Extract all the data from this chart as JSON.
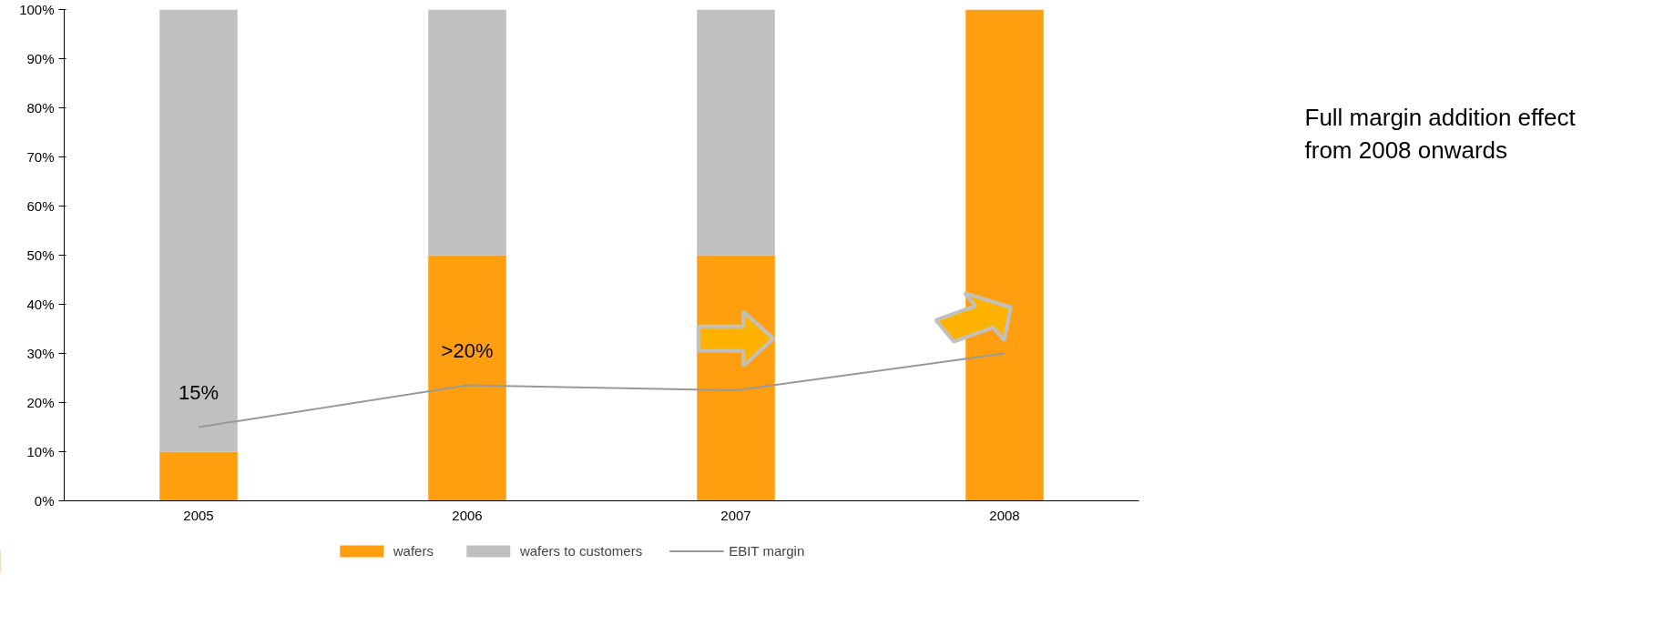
{
  "chart_data": {
    "type": "bar",
    "stacked": true,
    "categories": [
      "2005",
      "2006",
      "2007",
      "2008"
    ],
    "series": [
      {
        "name": "wafers",
        "color": "#ff9e0f",
        "values": [
          10,
          50,
          50,
          100
        ]
      },
      {
        "name": "wafers to customers",
        "color": "#c0c0c0",
        "values": [
          90,
          50,
          50,
          0
        ]
      },
      {
        "name": "EBIT margin",
        "type": "line",
        "color": "#999999",
        "values": [
          15,
          23.5,
          22.5,
          30
        ]
      }
    ],
    "ylim": [
      0,
      100
    ],
    "yticks": [
      {
        "value": 0,
        "label": "0%"
      },
      {
        "value": 10,
        "label": "10%"
      },
      {
        "value": 20,
        "label": "20%"
      },
      {
        "value": 30,
        "label": "30%"
      },
      {
        "value": 40,
        "label": "40%"
      },
      {
        "value": 50,
        "label": "50%"
      },
      {
        "value": 60,
        "label": "60%"
      },
      {
        "value": 70,
        "label": "70%"
      },
      {
        "value": 80,
        "label": "80%"
      },
      {
        "value": 90,
        "label": "90%"
      },
      {
        "value": 100,
        "label": "100%"
      }
    ],
    "legend": "bottom",
    "grid": false,
    "annotations": [
      "15%",
      ">20%",
      "Full margin addition effect from 2008 onwards"
    ]
  }
}
